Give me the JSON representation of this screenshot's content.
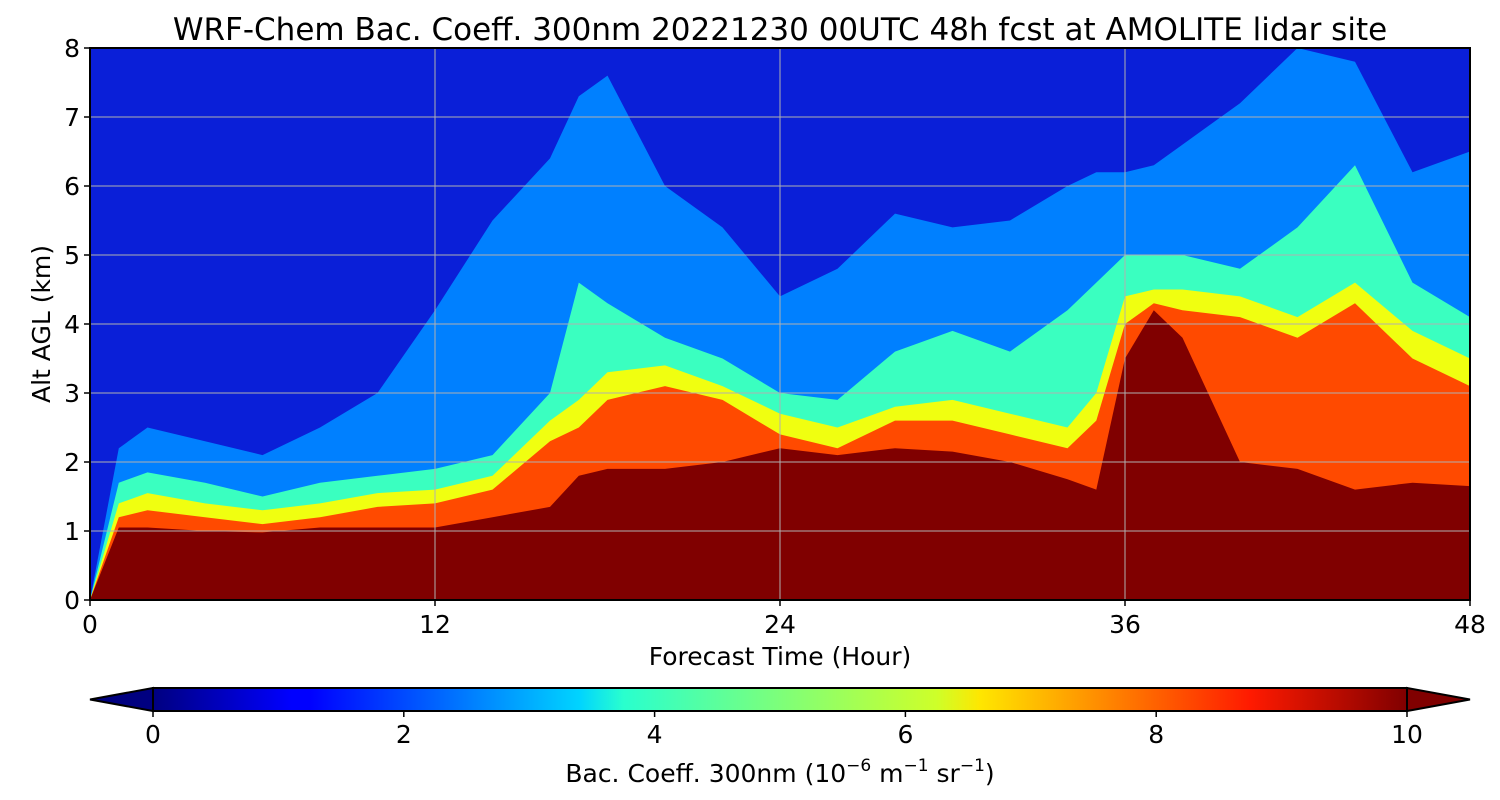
{
  "chart_data": {
    "type": "heatmap",
    "subtype": "filled-contour",
    "title": "WRF-Chem Bac. Coeff. 300nm  20221230 00UTC 48h fcst at AMOLITE lidar site",
    "xlabel": "Forecast Time (Hour)",
    "ylabel": "Alt AGL (km)",
    "xlim": [
      0,
      48
    ],
    "ylim": [
      0,
      8
    ],
    "xticks": [
      0,
      12,
      24,
      36,
      48
    ],
    "yticks": [
      0,
      1,
      2,
      3,
      4,
      5,
      6,
      7,
      8
    ],
    "grid": true,
    "colormap": "jet",
    "colorbar": {
      "label_main": "Bac. Coeff. 300nm  (10",
      "label_exp1": "−6",
      "label_mid": " m",
      "label_exp2": "−1",
      "label_mid2": " sr",
      "label_exp3": "−1",
      "label_end": ")",
      "ticks": [
        0,
        2,
        4,
        6,
        8,
        10
      ],
      "range": [
        0,
        10
      ],
      "extend": "both",
      "orientation": "horizontal"
    },
    "bands_value_estimates": {
      "description_levels": [
        0.5,
        2,
        4,
        6,
        8,
        10
      ],
      "x": [
        0,
        1,
        2,
        4,
        6,
        8,
        10,
        12,
        14,
        16,
        17,
        18,
        20,
        22,
        24,
        26,
        28,
        30,
        32,
        34,
        35,
        36,
        37,
        38,
        40,
        42,
        44,
        46,
        48
      ],
      "boundary_ge10_km": [
        0,
        1.05,
        1.05,
        1.0,
        0.98,
        1.05,
        1.05,
        1.05,
        1.2,
        1.35,
        1.8,
        1.9,
        1.9,
        2.0,
        2.2,
        2.1,
        2.2,
        2.15,
        2.0,
        1.75,
        1.6,
        3.5,
        4.2,
        3.8,
        2.0,
        1.9,
        1.6,
        1.7,
        1.65
      ],
      "boundary_ge8_km": [
        0,
        1.2,
        1.3,
        1.2,
        1.1,
        1.2,
        1.35,
        1.4,
        1.6,
        2.3,
        2.5,
        2.9,
        3.1,
        2.9,
        2.4,
        2.2,
        2.6,
        2.6,
        2.4,
        2.2,
        2.6,
        4.0,
        4.3,
        4.2,
        4.1,
        3.8,
        4.3,
        3.5,
        3.1
      ],
      "boundary_ge6_km": [
        0,
        1.4,
        1.55,
        1.4,
        1.3,
        1.4,
        1.55,
        1.6,
        1.8,
        2.6,
        2.9,
        3.3,
        3.4,
        3.1,
        2.7,
        2.5,
        2.8,
        2.9,
        2.7,
        2.5,
        3.0,
        4.4,
        4.5,
        4.5,
        4.4,
        4.1,
        4.6,
        3.9,
        3.5
      ],
      "boundary_ge4_km": [
        0,
        1.7,
        1.85,
        1.7,
        1.5,
        1.7,
        1.8,
        1.9,
        2.1,
        3.0,
        4.6,
        4.3,
        3.8,
        3.5,
        3.0,
        2.9,
        3.6,
        3.9,
        3.6,
        4.2,
        4.6,
        5.0,
        5.0,
        5.0,
        4.8,
        5.4,
        6.3,
        4.6,
        4.1
      ],
      "boundary_ge2_km": [
        0,
        2.2,
        2.5,
        2.3,
        2.1,
        2.5,
        3.0,
        4.2,
        5.5,
        6.4,
        7.3,
        7.6,
        6.0,
        5.4,
        4.4,
        4.8,
        5.6,
        5.4,
        5.5,
        6.0,
        6.2,
        6.2,
        6.3,
        6.6,
        7.2,
        8.0,
        7.8,
        6.2,
        6.5
      ]
    }
  }
}
